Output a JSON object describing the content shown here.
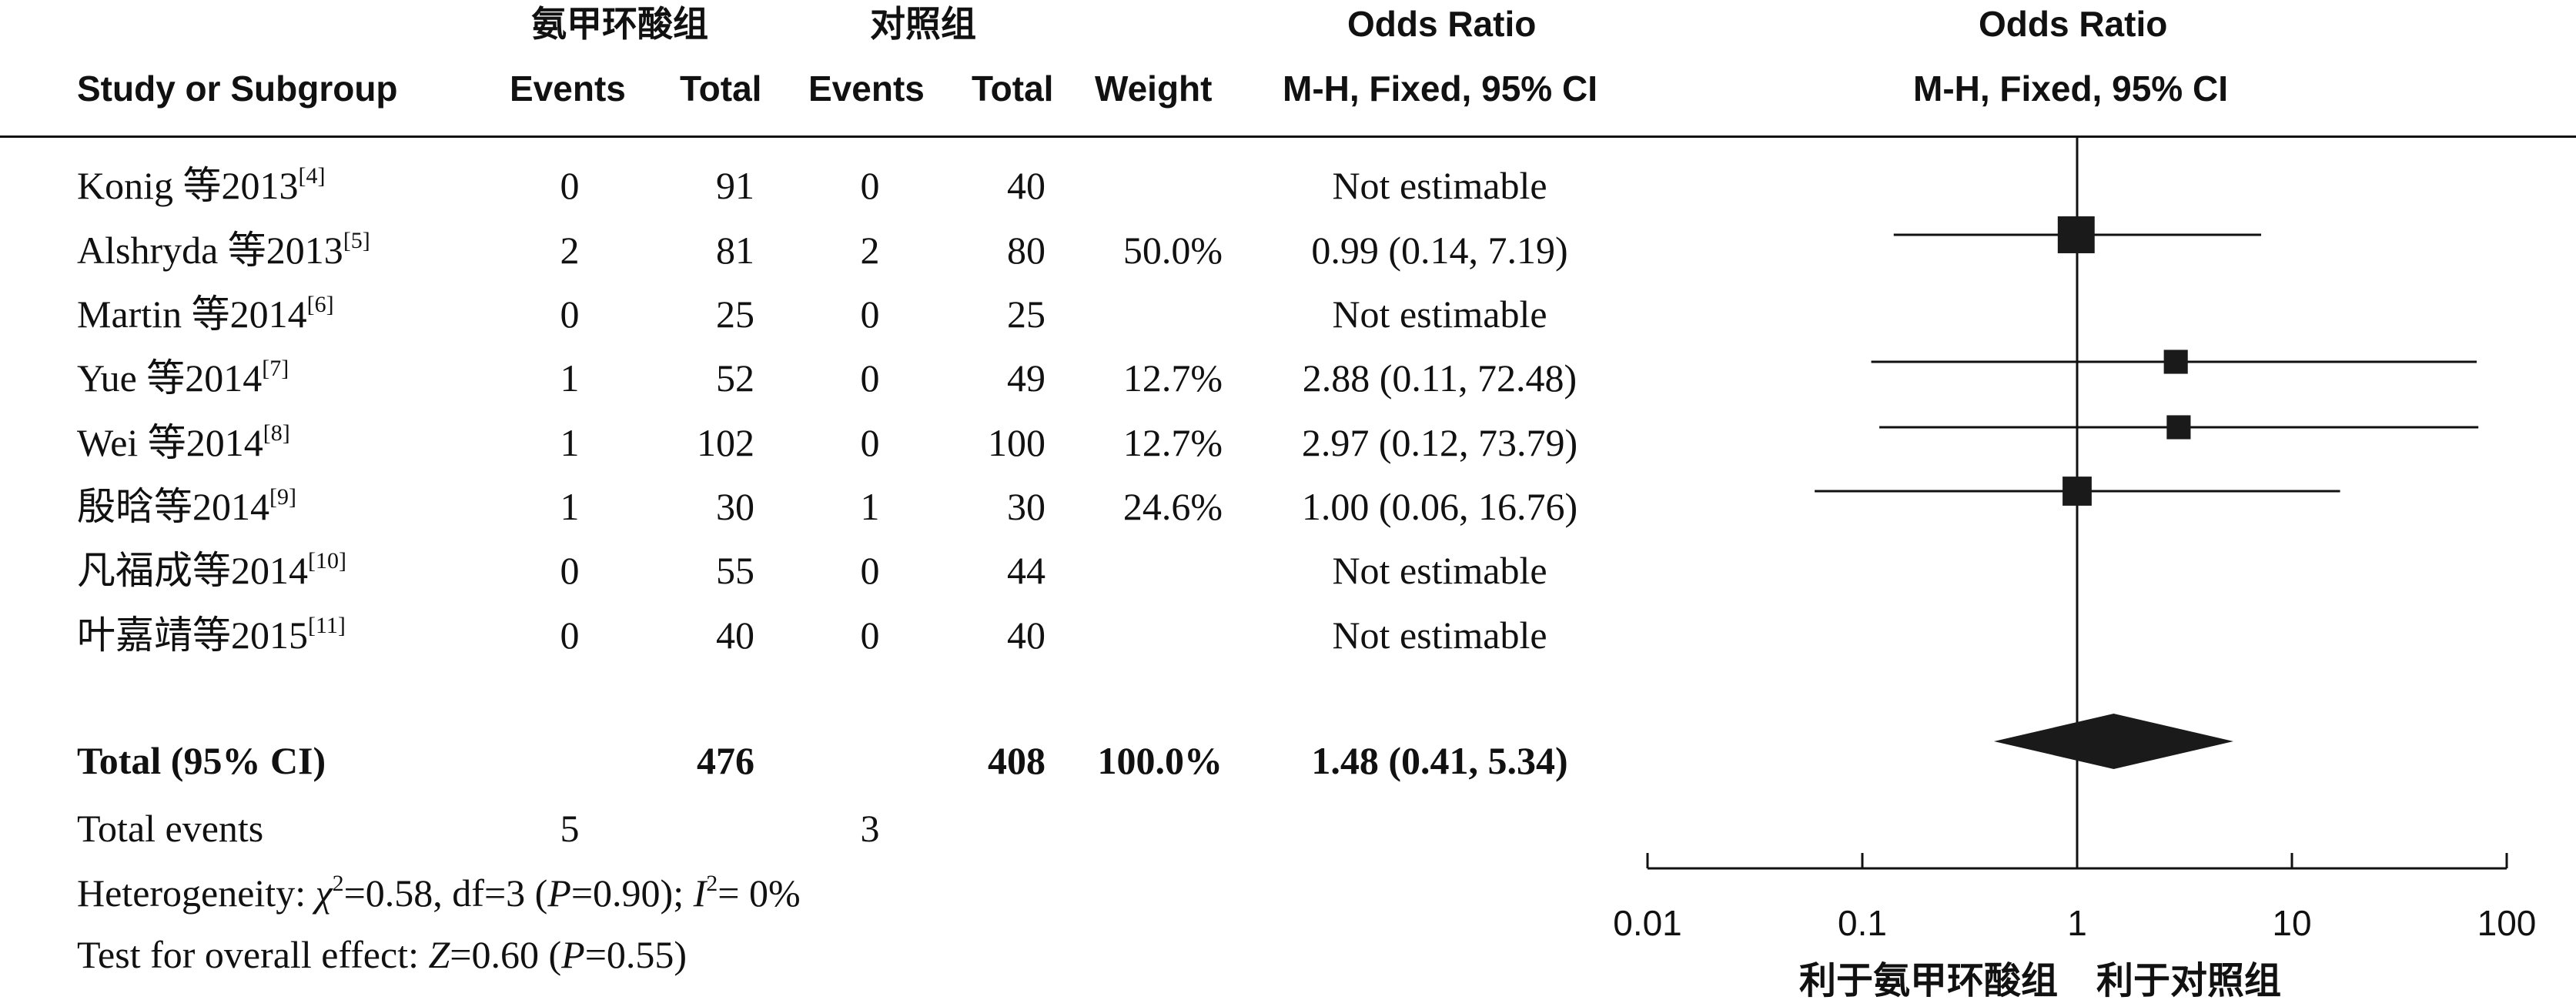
{
  "header": {
    "group_exp": "氨甲环酸组",
    "group_ctrl": "对照组",
    "col_study": "Study or Subgroup",
    "col_events": "Events",
    "col_total": "Total",
    "col_weight": "Weight",
    "or_title": "Odds Ratio",
    "or_method": "M-H, Fixed, 95% CI",
    "plot_title": "Odds Ratio",
    "plot_method": "M-H, Fixed, 95% CI"
  },
  "studies": [
    {
      "name": "Konig 等2013",
      "ref": "[4]",
      "exp_events": "0",
      "exp_total": "91",
      "ctrl_events": "0",
      "ctrl_total": "40",
      "weight": "",
      "ci_text": "Not estimable",
      "or": null,
      "lo": null,
      "hi": null
    },
    {
      "name": "Alshryda 等2013",
      "ref": "[5]",
      "exp_events": "2",
      "exp_total": "81",
      "ctrl_events": "2",
      "ctrl_total": "80",
      "weight": "50.0%",
      "ci_text": "0.99 (0.14, 7.19)",
      "or": 0.99,
      "lo": 0.14,
      "hi": 7.19,
      "w": 50.0
    },
    {
      "name": "Martin 等2014",
      "ref": "[6]",
      "exp_events": "0",
      "exp_total": "25",
      "ctrl_events": "0",
      "ctrl_total": "25",
      "weight": "",
      "ci_text": "Not estimable",
      "or": null,
      "lo": null,
      "hi": null
    },
    {
      "name": "Yue 等2014",
      "ref": "[7]",
      "exp_events": "1",
      "exp_total": "52",
      "ctrl_events": "0",
      "ctrl_total": "49",
      "weight": "12.7%",
      "ci_text": "2.88 (0.11, 72.48)",
      "or": 2.88,
      "lo": 0.11,
      "hi": 72.48,
      "w": 12.7
    },
    {
      "name": "Wei 等2014",
      "ref": "[8]",
      "exp_events": "1",
      "exp_total": "102",
      "ctrl_events": "0",
      "ctrl_total": "100",
      "weight": "12.7%",
      "ci_text": "2.97 (0.12, 73.79)",
      "or": 2.97,
      "lo": 0.12,
      "hi": 73.79,
      "w": 12.7
    },
    {
      "name": "殷晗等2014",
      "ref": "[9]",
      "exp_events": "1",
      "exp_total": "30",
      "ctrl_events": "1",
      "ctrl_total": "30",
      "weight": "24.6%",
      "ci_text": "1.00 (0.06, 16.76)",
      "or": 1.0,
      "lo": 0.06,
      "hi": 16.76,
      "w": 24.6
    },
    {
      "name": "凡福成等2014",
      "ref": "[10]",
      "exp_events": "0",
      "exp_total": "55",
      "ctrl_events": "0",
      "ctrl_total": "44",
      "weight": "",
      "ci_text": "Not estimable",
      "or": null,
      "lo": null,
      "hi": null
    },
    {
      "name": "叶嘉靖等2015",
      "ref": "[11]",
      "exp_events": "0",
      "exp_total": "40",
      "ctrl_events": "0",
      "ctrl_total": "40",
      "weight": "",
      "ci_text": "Not estimable",
      "or": null,
      "lo": null,
      "hi": null
    }
  ],
  "total": {
    "label": "Total (95% CI)",
    "exp_total": "476",
    "ctrl_total": "408",
    "weight": "100.0%",
    "ci_text": "1.48 (0.41, 5.34)",
    "or": 1.48,
    "lo": 0.41,
    "hi": 5.34
  },
  "total_events": {
    "label": "Total events",
    "exp": "5",
    "ctrl": "3"
  },
  "heterogeneity": {
    "prefix": "Heterogeneity: ",
    "chi_sym": "χ",
    "chi_value": "=0.58, df=3 (",
    "p_sym": "P",
    "p_value": "=0.90); ",
    "i_sym": "I",
    "i_value": "= 0%"
  },
  "overall": {
    "prefix": "Test for overall effect: ",
    "z_sym": "Z",
    "z_value": "=0.60 (",
    "p_sym": "P",
    "p_value": "=0.55)"
  },
  "axis": {
    "scale": "log",
    "ticks": [
      0.01,
      0.1,
      1,
      10,
      100
    ],
    "tick_labels": [
      "0.01",
      "0.1",
      "1",
      "10",
      "100"
    ],
    "favours_left": "利于氨甲环酸组",
    "favours_right": "利于对照组"
  },
  "chart_data": {
    "type": "forest",
    "title": "Odds Ratio",
    "xlabel": "",
    "x_scale": "log",
    "xlim": [
      0.01,
      100
    ],
    "reference_line": 1,
    "categories": [
      "Konig 等2013",
      "Alshryda 等2013",
      "Martin 等2014",
      "Yue 等2014",
      "Wei 等2014",
      "殷晗等2014",
      "凡福成等2014",
      "叶嘉靖等2015"
    ],
    "odds_ratio": [
      null,
      0.99,
      null,
      2.88,
      2.97,
      1.0,
      null,
      null
    ],
    "ci_lower": [
      null,
      0.14,
      null,
      0.11,
      0.12,
      0.06,
      null,
      null
    ],
    "ci_upper": [
      null,
      7.19,
      null,
      72.48,
      73.79,
      16.76,
      null,
      null
    ],
    "weights_percent": [
      null,
      50.0,
      null,
      12.7,
      12.7,
      24.6,
      null,
      null
    ],
    "pooled": {
      "odds_ratio": 1.48,
      "ci_lower": 0.41,
      "ci_upper": 5.34
    }
  },
  "colors": {
    "ink": "#111111",
    "marker": "#1a1a1a"
  }
}
